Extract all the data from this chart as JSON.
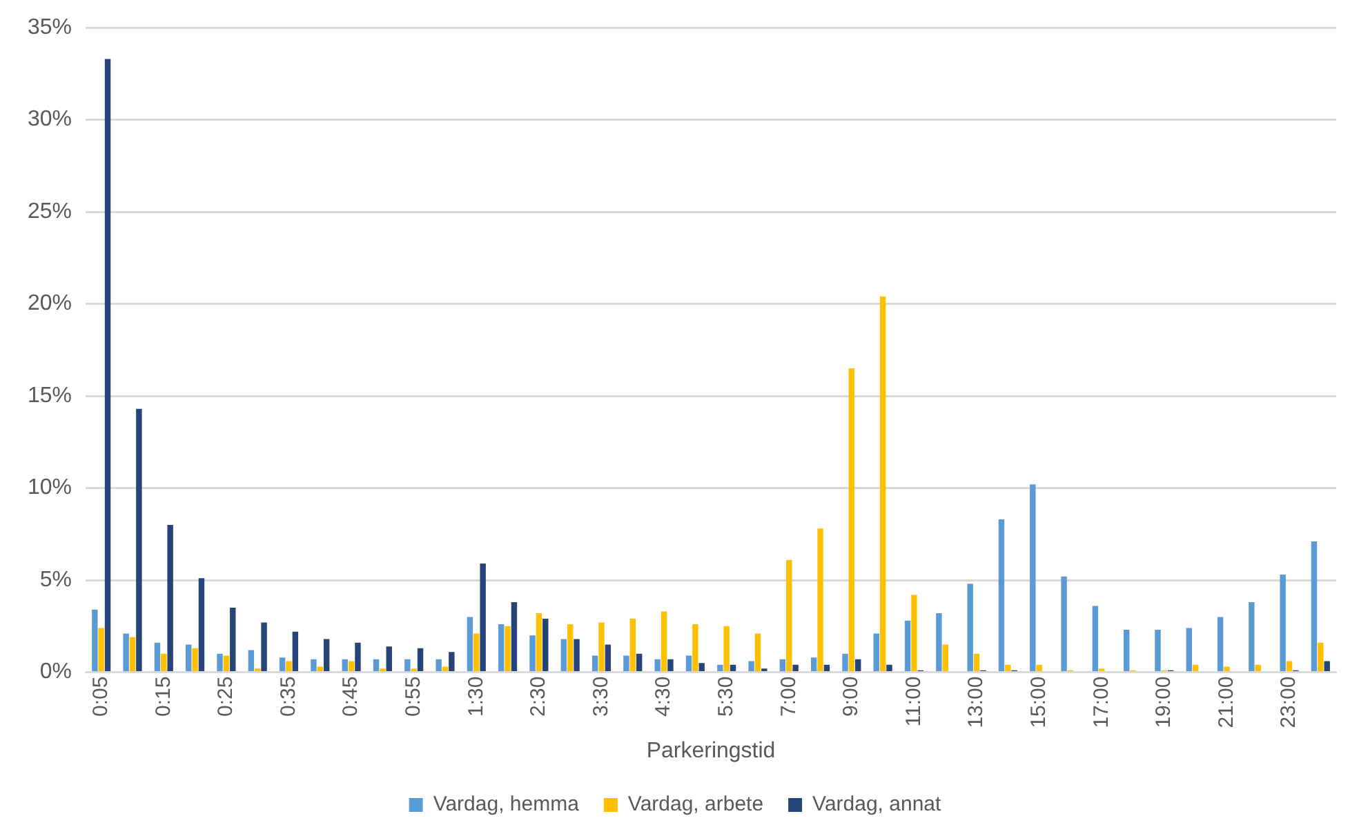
{
  "chart_data": {
    "type": "bar",
    "xlabel": "Parkeringstid",
    "categories": [
      "0:05",
      null,
      "0:15",
      null,
      "0:25",
      null,
      "0:35",
      null,
      "0:45",
      null,
      "0:55",
      null,
      "1:30",
      null,
      "2:30",
      null,
      "3:30",
      null,
      "4:30",
      null,
      "5:30",
      null,
      "7:00",
      null,
      "9:00",
      null,
      "11:00",
      null,
      "13:00",
      null,
      "15:00",
      null,
      "17:00",
      null,
      "19:00",
      null,
      "21:00",
      null,
      "23:00",
      null
    ],
    "series": [
      {
        "name": "Vardag, hemma",
        "color": "#5b9bd5",
        "values": [
          3.4,
          2.1,
          1.6,
          1.5,
          1.0,
          1.2,
          0.8,
          0.7,
          0.7,
          0.7,
          0.7,
          0.7,
          3.0,
          2.6,
          2.0,
          1.8,
          0.9,
          0.9,
          0.7,
          0.9,
          0.4,
          0.6,
          0.7,
          0.8,
          1.0,
          2.1,
          2.8,
          3.2,
          4.8,
          8.3,
          10.2,
          5.2,
          3.6,
          2.3,
          2.3,
          2.4,
          3.0,
          3.8,
          5.3,
          7.1
        ]
      },
      {
        "name": "Vardag, arbete",
        "color": "#ffc000",
        "values": [
          2.4,
          1.9,
          1.0,
          1.3,
          0.9,
          0.2,
          0.6,
          0.3,
          0.6,
          0.2,
          0.2,
          0.3,
          2.1,
          2.5,
          3.2,
          2.6,
          2.7,
          2.9,
          3.3,
          2.6,
          2.5,
          2.1,
          6.1,
          7.8,
          16.5,
          20.4,
          4.2,
          1.5,
          1.0,
          0.4,
          0.4,
          0.1,
          0.2,
          0.1,
          0.1,
          0.4,
          0.3,
          0.4,
          0.6,
          1.6
        ]
      },
      {
        "name": "Vardag, annat",
        "color": "#264478",
        "values": [
          33.3,
          14.3,
          8.0,
          5.1,
          3.5,
          2.7,
          2.2,
          1.8,
          1.6,
          1.4,
          1.3,
          1.1,
          5.9,
          3.8,
          2.9,
          1.8,
          1.5,
          1.0,
          0.7,
          0.5,
          0.4,
          0.2,
          0.4,
          0.4,
          0.7,
          0.4,
          0.1,
          0,
          0.1,
          0.1,
          0,
          0,
          0,
          0,
          0.1,
          0,
          0,
          0,
          0.1,
          0.6
        ]
      }
    ],
    "ylim": [
      0,
      35
    ],
    "yticks": [
      {
        "value": 0,
        "label": "0%"
      },
      {
        "value": 5,
        "label": "5%"
      },
      {
        "value": 10,
        "label": "10%"
      },
      {
        "value": 15,
        "label": "15%"
      },
      {
        "value": 20,
        "label": "20%"
      },
      {
        "value": 25,
        "label": "25%"
      },
      {
        "value": 30,
        "label": "30%"
      },
      {
        "value": 35,
        "label": "35%"
      }
    ],
    "grid": "y",
    "legend": "bottom"
  }
}
